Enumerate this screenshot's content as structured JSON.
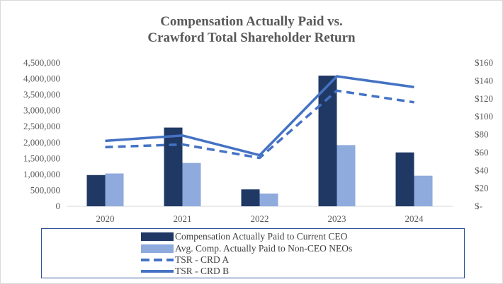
{
  "title_line1": "Compensation Actually Paid vs.",
  "title_line2": "Crawford Total Shareholder Return",
  "colors": {
    "ceo_bar": "#1f3864",
    "neo_bar": "#8faadc",
    "tsr_a": "#4472c4",
    "tsr_b": "#4472c4",
    "text": "#595959",
    "legend_border": "#2f5597"
  },
  "chart_data": {
    "type": "bar",
    "categories": [
      "2020",
      "2021",
      "2022",
      "2023",
      "2024"
    ],
    "title": "Compensation Actually Paid vs. Crawford Total Shareholder Return",
    "left_axis": {
      "ylim": [
        0,
        4500000
      ],
      "ticks": [
        0,
        500000,
        1000000,
        1500000,
        2000000,
        2500000,
        3000000,
        3500000,
        4000000,
        4500000
      ],
      "tick_labels": [
        "0",
        "500,000",
        "1,000,000",
        "1,500,000",
        "2,000,000",
        "2,500,000",
        "3,000,000",
        "3,500,000",
        "4,000,000",
        "4,500,000"
      ]
    },
    "right_axis": {
      "ylim": [
        0,
        160
      ],
      "ticks": [
        0,
        20,
        40,
        60,
        80,
        100,
        120,
        140,
        160
      ],
      "tick_labels": [
        "$-",
        "$20",
        "$40",
        "$60",
        "$80",
        "$100",
        "$120",
        "$140",
        "$160"
      ]
    },
    "series": [
      {
        "name": "Compensation Actually Paid to Current CEO",
        "kind": "bar",
        "axis": "left",
        "values": [
          980000,
          2470000,
          530000,
          4100000,
          1690000
        ]
      },
      {
        "name": "Avg. Comp. Actually Paid to Non-CEO NEOs",
        "kind": "bar",
        "axis": "left",
        "values": [
          1030000,
          1360000,
          400000,
          1920000,
          960000
        ]
      },
      {
        "name": "TSR - CRD A",
        "kind": "line",
        "style": "dashed",
        "axis": "right",
        "values": [
          66,
          69,
          54,
          129,
          116
        ]
      },
      {
        "name": "TSR - CRD B",
        "kind": "line",
        "style": "solid",
        "axis": "right",
        "values": [
          73,
          79,
          57,
          145,
          133
        ]
      }
    ],
    "grid": false,
    "legend_position": "bottom"
  }
}
